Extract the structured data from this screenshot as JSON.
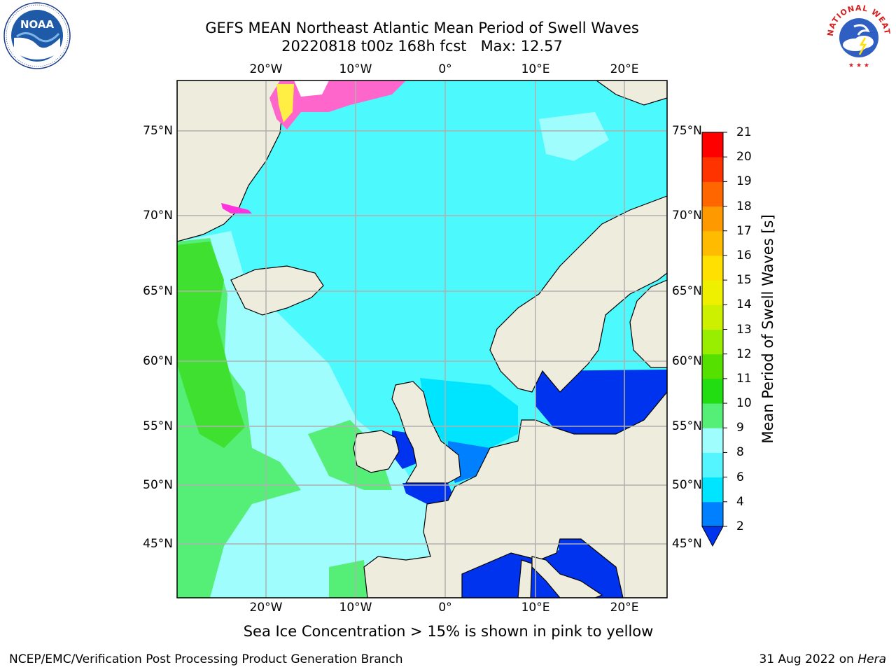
{
  "title": {
    "line1": "GEFS MEAN Northeast Atlantic Mean Period of Swell Waves",
    "line2": "20220818 t00z 168h fcst   Max: 12.57"
  },
  "axes": {
    "lon_labels": [
      "20°W",
      "10°W",
      "0°",
      "10°E",
      "20°E"
    ],
    "lat_labels": [
      "75°N",
      "70°N",
      "65°N",
      "60°N",
      "55°N",
      "50°N",
      "45°N"
    ]
  },
  "colorbar": {
    "title": "Mean Period of Swell Waves [s]",
    "tick_labels": [
      "2",
      "4",
      "6",
      "8",
      "9",
      "10",
      "11",
      "12",
      "13",
      "14",
      "15",
      "16",
      "17",
      "18",
      "19",
      "20",
      "21"
    ],
    "colors": [
      "#0033ee",
      "#007fff",
      "#00e5ff",
      "#55f5ff",
      "#a0fdfd",
      "#55ee77",
      "#22dd11",
      "#55e000",
      "#99ee00",
      "#ccf000",
      "#eef000",
      "#ffe000",
      "#ffbb00",
      "#ff9900",
      "#ff6600",
      "#ff3300",
      "#ff0000"
    ],
    "extend": "min"
  },
  "map": {
    "ocean_color": "#4cfafe",
    "land_color": "#eeecdc"
  },
  "note": "Sea Ice Concentration > 15% is shown in pink to yellow",
  "footer": {
    "credit": "NCEP/EMC/Verification Post Processing Product Generation Branch",
    "date": "31 Aug 2022 on",
    "host": "Hera"
  },
  "logos": {
    "noaa": "NOAA",
    "nws_ring": "NATIONAL WEATHER SERVICE"
  }
}
